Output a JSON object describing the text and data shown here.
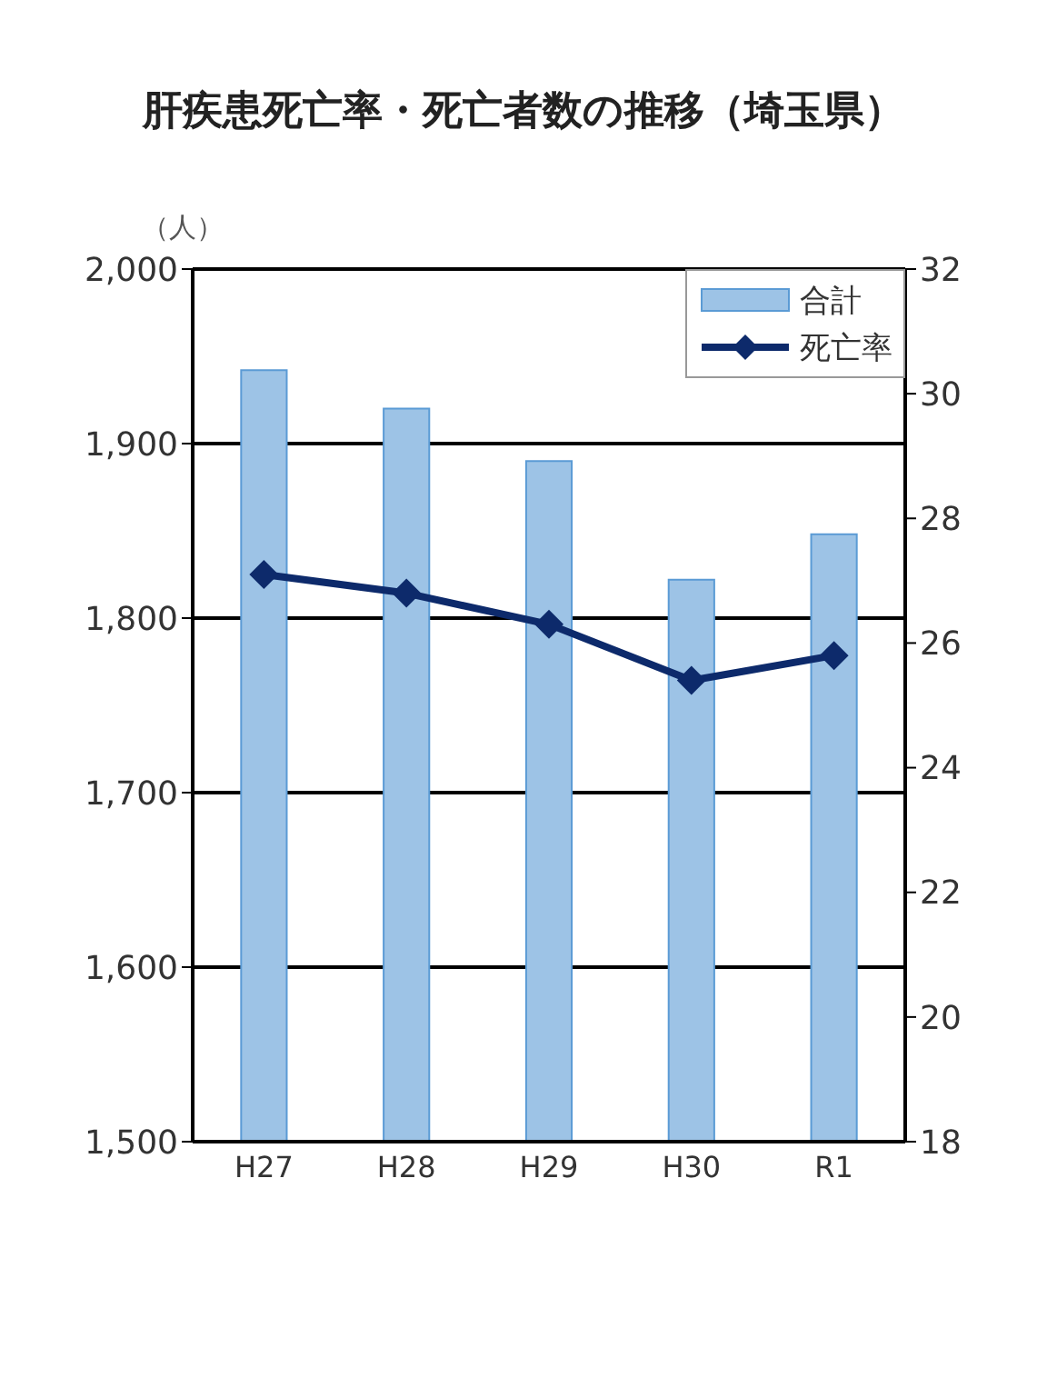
{
  "chart_data": {
    "type": "bar",
    "title": "肝疾患死亡率・死亡者数の推移（埼玉県）",
    "ylabel": "（人）",
    "categories": [
      "H27",
      "H28",
      "H29",
      "H30",
      "R1"
    ],
    "series": [
      {
        "name": "合計",
        "color": "#9dc3e6",
        "values": [
          1942,
          1920,
          1890,
          1822,
          1848
        ]
      },
      {
        "name": "死亡率",
        "type": "line",
        "axis": "y2",
        "color": "#0d2a6b",
        "marker": "diamond",
        "values": [
          27.1,
          26.8,
          26.3,
          25.4,
          25.8
        ]
      }
    ],
    "ylim": [
      1500,
      2000
    ],
    "yticks": [
      {
        "value": 1500,
        "label": "1,500"
      },
      {
        "value": 1600,
        "label": "1,600"
      },
      {
        "value": 1700,
        "label": "1,700"
      },
      {
        "value": 1800,
        "label": "1,800"
      },
      {
        "value": 1900,
        "label": "1,900"
      },
      {
        "value": 2000,
        "label": "2,000"
      }
    ],
    "y2lim": [
      18,
      32
    ],
    "y2ticks": [
      18,
      20,
      22,
      24,
      26,
      28,
      30,
      32
    ],
    "grid": "y",
    "legend": "top right"
  }
}
